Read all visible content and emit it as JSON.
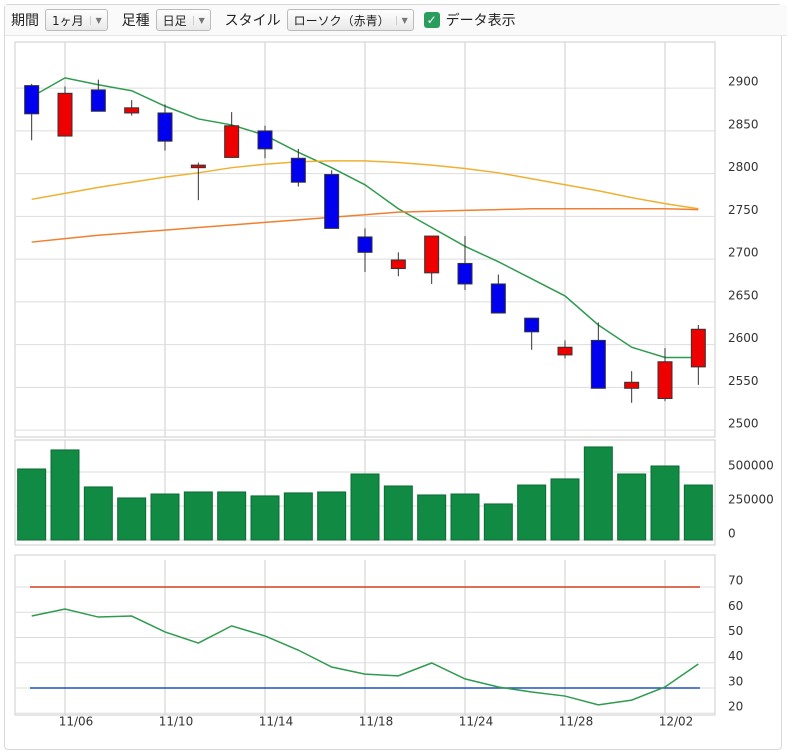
{
  "toolbar": {
    "period_label": "期間",
    "period": "1ヶ月",
    "bar_label": "足種",
    "bar": "日足",
    "style_label": "スタイル",
    "style": "ローソク（赤青）",
    "data_toggle": "データ表示",
    "data_toggle_checked": true
  },
  "chart_data": [
    {
      "type": "candlestick",
      "categories": [
        null,
        "11/06",
        null,
        null,
        "11/10",
        null,
        null,
        "11/14",
        null,
        null,
        "11/18",
        null,
        null,
        "11/24",
        null,
        null,
        "11/28",
        null,
        null,
        "12/02",
        null
      ],
      "open": [
        2903,
        2844,
        2898,
        2871,
        2871,
        2807,
        2819,
        2850,
        2818,
        2799,
        2726,
        2689,
        2684,
        2695,
        2671,
        2631,
        2588,
        2605,
        2549,
        2537,
        2574
      ],
      "high": [
        2905,
        2902,
        2910,
        2886,
        2881,
        2813,
        2872,
        2856,
        2829,
        2804,
        2736,
        2708,
        2727,
        2727,
        2682,
        2631,
        2605,
        2626,
        2569,
        2596,
        2623
      ],
      "low": [
        2839,
        2844,
        2873,
        2868,
        2827,
        2769,
        2819,
        2818,
        2785,
        2736,
        2685,
        2680,
        2671,
        2664,
        2637,
        2594,
        2584,
        2549,
        2532,
        2534,
        2553
      ],
      "close": [
        2870,
        2894,
        2873,
        2877,
        2838,
        2810,
        2856,
        2829,
        2790,
        2736,
        2708,
        2699,
        2727,
        2671,
        2637,
        2615,
        2597,
        2549,
        2556,
        2580,
        2618
      ],
      "up_color": "#ee0000",
      "down_color": "#0000ee",
      "series": [
        {
          "color": "#2e9b4e",
          "values": [
            2890,
            2912,
            2904,
            2897,
            2879,
            2864,
            2857,
            2845,
            2825,
            2807,
            2787,
            2759,
            2737,
            2715,
            2697,
            2677,
            2657,
            2623,
            2597,
            2585,
            2585
          ]
        },
        {
          "color": "#f0b030",
          "values": [
            2770,
            2777,
            2784,
            2790,
            2796,
            2801,
            2807,
            2811,
            2814,
            2815,
            2815,
            2813,
            2810,
            2806,
            2801,
            2794,
            2787,
            2780,
            2772,
            2765,
            2759
          ]
        },
        {
          "color": "#f08030",
          "values": [
            2720,
            2724,
            2728,
            2731,
            2734,
            2737,
            2740,
            2743,
            2746,
            2749,
            2752,
            2755,
            2756,
            2757,
            2758,
            2759,
            2759,
            2759,
            2759,
            2759,
            2758
          ]
        }
      ],
      "ylim": [
        2492,
        2954
      ],
      "yticks": [
        2500,
        2550,
        2600,
        2650,
        2700,
        2750,
        2800,
        2850,
        2900
      ],
      "grid": true
    },
    {
      "type": "bar",
      "color": "#118a44",
      "values": [
        522000,
        662000,
        390000,
        309000,
        338000,
        353000,
        353000,
        324000,
        346000,
        353000,
        485000,
        397000,
        331000,
        338000,
        265000,
        404000,
        449000,
        684000,
        485000,
        544000,
        404000
      ],
      "ylim": [
        0,
        735000
      ],
      "yticks": [
        0,
        250000,
        500000
      ],
      "grid": true
    },
    {
      "type": "line",
      "color": "#2e9b4e",
      "values": [
        58.5,
        61.3,
        58.1,
        58.5,
        52.2,
        47.8,
        54.6,
        50.6,
        45.0,
        38.3,
        35.5,
        34.8,
        39.9,
        33.6,
        30.4,
        28.4,
        26.8,
        23.3,
        25.2,
        30.4,
        39.5
      ],
      "reference_lines": [
        {
          "value": 70,
          "color": "#d04020"
        },
        {
          "value": 30,
          "color": "#2050c0"
        }
      ],
      "ylim": [
        19.3,
        80.7
      ],
      "yticks": [
        20,
        30,
        40,
        50,
        60,
        70
      ],
      "grid": true
    }
  ]
}
